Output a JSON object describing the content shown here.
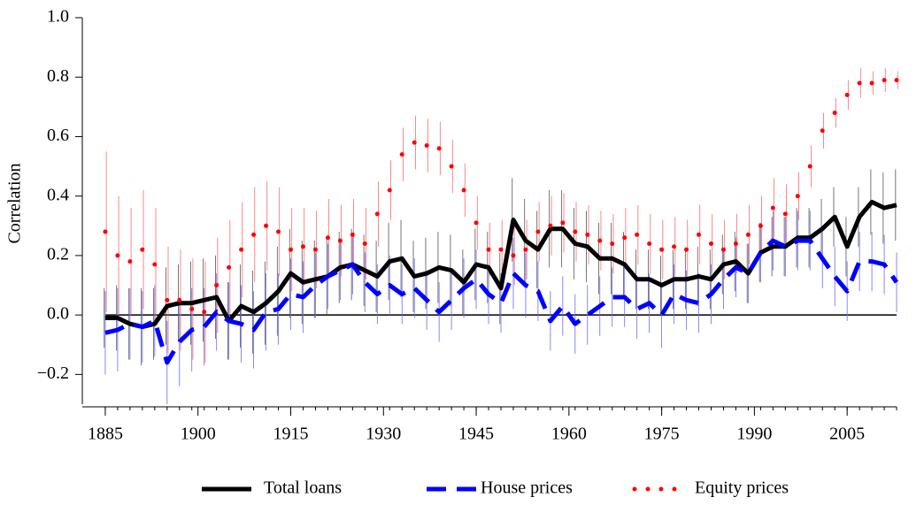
{
  "chart_data": {
    "type": "line",
    "y_label": "Correlation",
    "x": [
      1885,
      1887,
      1889,
      1891,
      1893,
      1895,
      1897,
      1899,
      1901,
      1903,
      1905,
      1907,
      1909,
      1911,
      1913,
      1915,
      1917,
      1919,
      1921,
      1923,
      1925,
      1927,
      1929,
      1931,
      1933,
      1935,
      1937,
      1939,
      1941,
      1943,
      1945,
      1947,
      1949,
      1951,
      1953,
      1955,
      1957,
      1959,
      1961,
      1963,
      1965,
      1967,
      1969,
      1971,
      1973,
      1975,
      1977,
      1979,
      1981,
      1983,
      1985,
      1987,
      1989,
      1991,
      1993,
      1995,
      1997,
      1999,
      2001,
      2003,
      2005,
      2007,
      2009,
      2011,
      2013
    ],
    "series": [
      {
        "name": "Total loans",
        "color": "#000000",
        "style": "solid",
        "values": [
          -0.01,
          -0.01,
          -0.03,
          -0.04,
          -0.03,
          0.03,
          0.04,
          0.04,
          0.05,
          0.06,
          -0.02,
          0.03,
          0.01,
          0.04,
          0.08,
          0.14,
          0.11,
          0.12,
          0.13,
          0.16,
          0.17,
          0.15,
          0.13,
          0.18,
          0.19,
          0.13,
          0.14,
          0.16,
          0.15,
          0.11,
          0.17,
          0.16,
          0.09,
          0.32,
          0.25,
          0.22,
          0.29,
          0.29,
          0.24,
          0.23,
          0.19,
          0.19,
          0.17,
          0.12,
          0.12,
          0.1,
          0.12,
          0.12,
          0.13,
          0.12,
          0.17,
          0.18,
          0.14,
          0.21,
          0.23,
          0.23,
          0.26,
          0.26,
          0.29,
          0.33,
          0.23,
          0.33,
          0.38,
          0.36,
          0.37
        ],
        "errors": [
          0.1,
          0.11,
          0.12,
          0.13,
          0.12,
          0.13,
          0.13,
          0.14,
          0.14,
          0.14,
          0.13,
          0.14,
          0.14,
          0.14,
          0.15,
          0.15,
          0.14,
          0.13,
          0.13,
          0.12,
          0.12,
          0.12,
          0.12,
          0.13,
          0.13,
          0.12,
          0.12,
          0.12,
          0.12,
          0.11,
          0.12,
          0.12,
          0.12,
          0.14,
          0.14,
          0.13,
          0.13,
          0.13,
          0.12,
          0.12,
          0.12,
          0.12,
          0.11,
          0.1,
          0.1,
          0.1,
          0.1,
          0.1,
          0.1,
          0.1,
          0.1,
          0.1,
          0.1,
          0.1,
          0.1,
          0.1,
          0.1,
          0.1,
          0.1,
          0.1,
          0.1,
          0.1,
          0.11,
          0.12,
          0.12
        ]
      },
      {
        "name": "House prices",
        "color": "#0000ff",
        "style": "dashed",
        "values": [
          -0.06,
          -0.05,
          -0.03,
          -0.04,
          -0.02,
          -0.16,
          -0.09,
          -0.05,
          -0.04,
          0.01,
          -0.02,
          -0.03,
          -0.05,
          0.01,
          0.02,
          0.07,
          0.06,
          0.1,
          0.13,
          0.15,
          0.17,
          0.11,
          0.07,
          0.1,
          0.07,
          0.09,
          0.05,
          0.01,
          0.05,
          0.09,
          0.12,
          0.07,
          0.04,
          0.14,
          0.1,
          0.08,
          -0.02,
          0.03,
          -0.03,
          0.0,
          0.03,
          0.06,
          0.06,
          0.02,
          0.04,
          0.0,
          0.07,
          0.05,
          0.04,
          0.07,
          0.12,
          0.16,
          0.14,
          0.21,
          0.25,
          0.23,
          0.25,
          0.25,
          0.19,
          0.13,
          0.08,
          0.18,
          0.18,
          0.17,
          0.11
        ],
        "errors": [
          0.14,
          0.14,
          0.12,
          0.12,
          0.12,
          0.14,
          0.15,
          0.14,
          0.13,
          0.13,
          0.13,
          0.13,
          0.13,
          0.13,
          0.12,
          0.12,
          0.12,
          0.11,
          0.11,
          0.1,
          0.1,
          0.1,
          0.1,
          0.1,
          0.1,
          0.1,
          0.1,
          0.1,
          0.1,
          0.1,
          0.1,
          0.1,
          0.1,
          0.12,
          0.11,
          0.1,
          0.1,
          0.1,
          0.1,
          0.1,
          0.1,
          0.1,
          0.1,
          0.1,
          0.1,
          0.11,
          0.1,
          0.1,
          0.1,
          0.1,
          0.1,
          0.1,
          0.1,
          0.1,
          0.1,
          0.1,
          0.1,
          0.1,
          0.1,
          0.1,
          0.1,
          0.1,
          0.1,
          0.1,
          0.1
        ]
      },
      {
        "name": "Equity prices",
        "color": "#ff0000",
        "style": "dotted",
        "values": [
          0.28,
          0.2,
          0.18,
          0.22,
          0.17,
          0.05,
          0.05,
          0.02,
          0.01,
          0.1,
          0.16,
          0.22,
          0.27,
          0.3,
          0.28,
          0.22,
          0.23,
          0.22,
          0.26,
          0.25,
          0.27,
          0.24,
          0.34,
          0.42,
          0.54,
          0.58,
          0.57,
          0.56,
          0.5,
          0.42,
          0.31,
          0.22,
          0.22,
          0.2,
          0.22,
          0.28,
          0.3,
          0.31,
          0.28,
          0.27,
          0.25,
          0.24,
          0.26,
          0.27,
          0.24,
          0.22,
          0.23,
          0.22,
          0.27,
          0.24,
          0.22,
          0.24,
          0.27,
          0.3,
          0.36,
          0.34,
          0.4,
          0.5,
          0.62,
          0.68,
          0.74,
          0.78,
          0.78,
          0.79,
          0.79
        ],
        "errors": [
          0.27,
          0.2,
          0.18,
          0.2,
          0.19,
          0.18,
          0.17,
          0.17,
          0.17,
          0.16,
          0.16,
          0.16,
          0.16,
          0.15,
          0.15,
          0.14,
          0.13,
          0.13,
          0.13,
          0.12,
          0.12,
          0.12,
          0.11,
          0.1,
          0.09,
          0.09,
          0.09,
          0.09,
          0.09,
          0.09,
          0.09,
          0.09,
          0.1,
          0.1,
          0.1,
          0.1,
          0.1,
          0.1,
          0.1,
          0.1,
          0.1,
          0.1,
          0.1,
          0.1,
          0.1,
          0.1,
          0.1,
          0.1,
          0.1,
          0.1,
          0.1,
          0.1,
          0.1,
          0.1,
          0.1,
          0.1,
          0.08,
          0.07,
          0.06,
          0.05,
          0.05,
          0.05,
          0.04,
          0.04,
          0.03
        ]
      }
    ],
    "xlim": [
      1881,
      2016
    ],
    "xticks": [
      1885,
      1900,
      1915,
      1930,
      1945,
      1960,
      1975,
      1990,
      2005
    ],
    "ylim": [
      -0.3,
      1.0
    ],
    "yticks": [
      {
        "value": -0.2,
        "label": "−0.2"
      },
      {
        "value": 0,
        "label": "0.0"
      },
      0.2,
      0.4,
      0.6,
      0.8,
      {
        "value": 1,
        "label": "1.0"
      }
    ],
    "zero_line": true,
    "legend": "bottom"
  }
}
